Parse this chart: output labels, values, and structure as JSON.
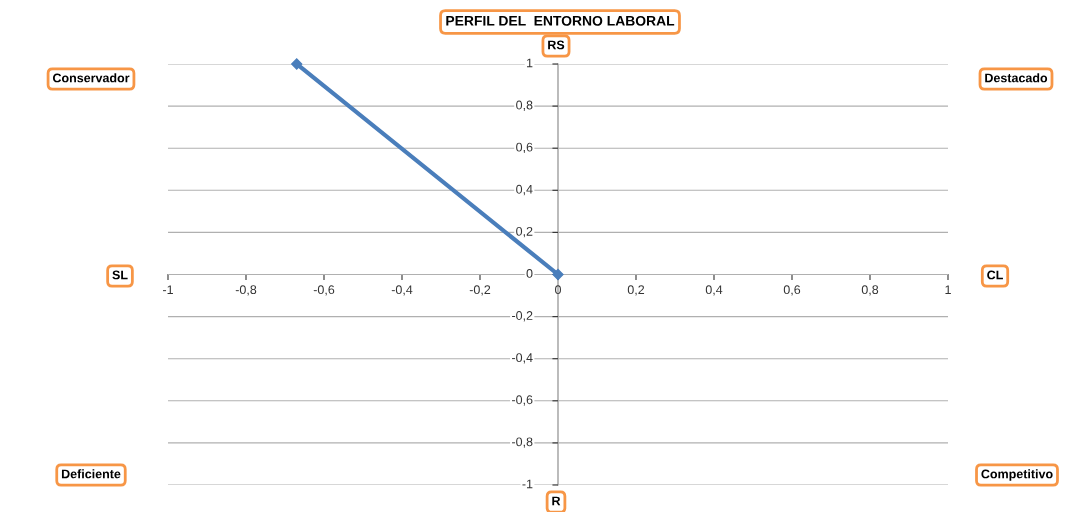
{
  "chart_data": {
    "type": "line",
    "title": "PERFIL DEL  ENTORNO LABORAL",
    "x": [
      0,
      -0.67
    ],
    "series": [
      {
        "color": "#4a7ebb",
        "values": [
          0,
          1
        ]
      }
    ],
    "marker": "diamond",
    "xlim": [
      -1,
      1
    ],
    "ylim": [
      -1,
      1
    ],
    "xticks": [
      -1,
      {
        "value": -0.8,
        "label": "-0,8"
      },
      {
        "value": -0.6,
        "label": "-0,6"
      },
      {
        "value": -0.4,
        "label": "-0,4"
      },
      {
        "value": -0.2,
        "label": "-0,2"
      },
      0,
      {
        "value": 0.2,
        "label": "0,2"
      },
      {
        "value": 0.4,
        "label": "0,4"
      },
      {
        "value": 0.6,
        "label": "0,6"
      },
      {
        "value": 0.8,
        "label": "0,8"
      },
      1
    ],
    "yticks": [
      -1,
      {
        "value": -0.8,
        "label": "-0,8"
      },
      {
        "value": -0.6,
        "label": "-0,6"
      },
      {
        "value": -0.4,
        "label": "-0,4"
      },
      {
        "value": -0.2,
        "label": "-0,2"
      },
      0,
      {
        "value": 0.2,
        "label": "0,2"
      },
      {
        "value": 0.4,
        "label": "0,4"
      },
      {
        "value": 0.6,
        "label": "0,6"
      },
      {
        "value": 0.8,
        "label": "0,8"
      },
      1
    ],
    "grid": "y",
    "annotations": [
      "RS",
      "R",
      "SL",
      "CL",
      "Conservador",
      "Destacado",
      "Deficiente",
      "Competitivo"
    ]
  }
}
